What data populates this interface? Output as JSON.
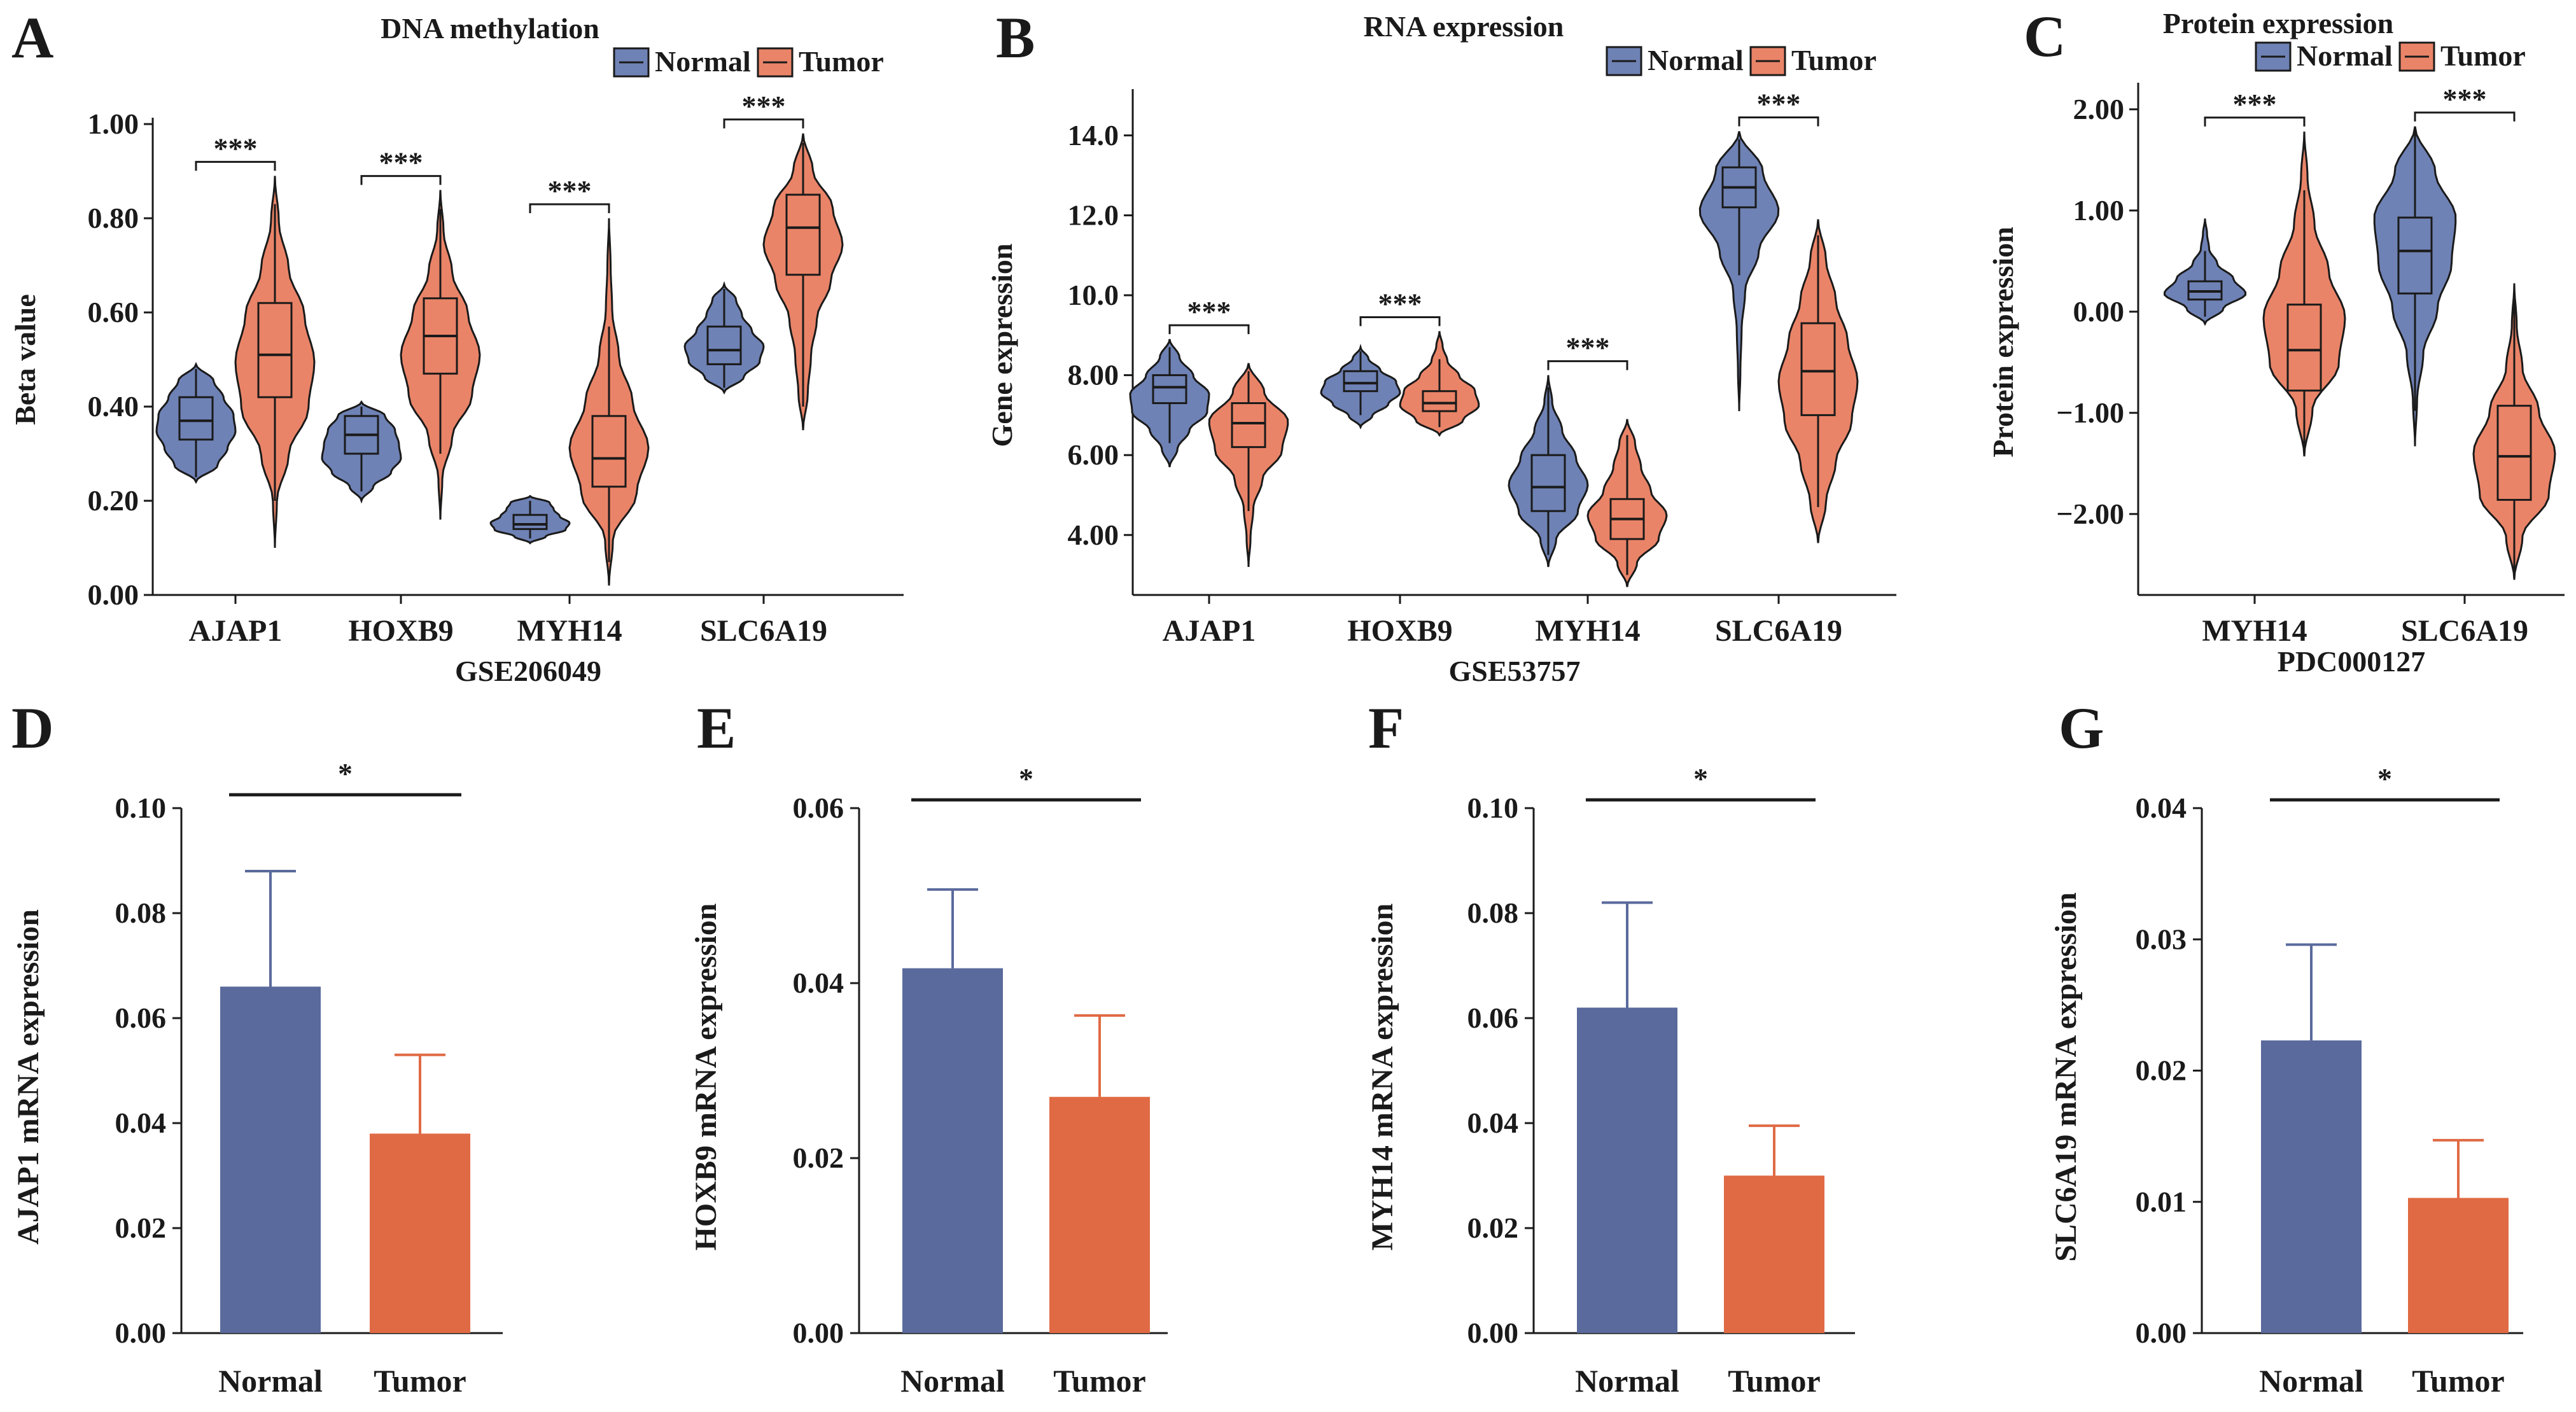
{
  "colors": {
    "normal": "#5a6a9c",
    "tumor": "#e06a44",
    "normal_violin": "#6f82b5",
    "tumor_violin": "#ea8468",
    "axis": "#1a1a1a"
  },
  "chart_data": [
    {
      "id": "A",
      "type": "violin",
      "letter": "A",
      "title": "DNA methylation",
      "xlabel": "GSE206049",
      "ylabel": "Beta value",
      "ylim": [
        0,
        1.0
      ],
      "yticks": [
        0.0,
        0.2,
        0.4,
        0.6,
        0.8,
        1.0
      ],
      "ytick_labels": [
        "0.00",
        "0.20",
        "0.40",
        "0.60",
        "0.80",
        "1.00"
      ],
      "legend": [
        "Normal",
        "Tumor"
      ],
      "categories": [
        "AJAP1",
        "HOXB9",
        "MYH14",
        "SLC6A19"
      ],
      "series": [
        {
          "name": "Normal",
          "groups": [
            {
              "min": 0.24,
              "max": 0.49,
              "q1": 0.33,
              "median": 0.37,
              "q3": 0.42,
              "wlo": 0.25,
              "whi": 0.48,
              "shape": [
                0.55,
                0.8,
                1.0,
                0.95,
                0.7,
                0.45
              ]
            },
            {
              "min": 0.2,
              "max": 0.41,
              "q1": 0.3,
              "median": 0.34,
              "q3": 0.38,
              "wlo": 0.22,
              "whi": 0.4,
              "shape": [
                0.3,
                0.75,
                1.0,
                0.95,
                0.85,
                0.6
              ]
            },
            {
              "min": 0.11,
              "max": 0.21,
              "q1": 0.14,
              "median": 0.15,
              "q3": 0.17,
              "wlo": 0.12,
              "whi": 0.2,
              "shape": [
                0.4,
                0.9,
                1.0,
                0.75,
                0.6,
                0.5
              ]
            },
            {
              "min": 0.43,
              "max": 0.66,
              "q1": 0.49,
              "median": 0.52,
              "q3": 0.57,
              "wlo": 0.44,
              "whi": 0.65,
              "shape": [
                0.5,
                0.9,
                1.0,
                0.7,
                0.45,
                0.3
              ]
            }
          ]
        },
        {
          "name": "Tumor",
          "groups": [
            {
              "min": 0.1,
              "max": 0.89,
              "q1": 0.42,
              "median": 0.51,
              "q3": 0.62,
              "wlo": 0.2,
              "whi": 0.83,
              "shape": [
                0.05,
                0.35,
                0.85,
                1.0,
                0.75,
                0.35,
                0.1
              ]
            },
            {
              "min": 0.16,
              "max": 0.86,
              "q1": 0.47,
              "median": 0.55,
              "q3": 0.63,
              "wlo": 0.3,
              "whi": 0.82,
              "shape": [
                0.05,
                0.3,
                0.8,
                1.0,
                0.7,
                0.3,
                0.08
              ]
            },
            {
              "min": 0.02,
              "max": 0.8,
              "q1": 0.23,
              "median": 0.29,
              "q3": 0.38,
              "wlo": 0.07,
              "whi": 0.57,
              "shape": [
                0.1,
                0.7,
                1.0,
                0.6,
                0.25,
                0.08,
                0.04
              ]
            },
            {
              "min": 0.35,
              "max": 0.98,
              "q1": 0.68,
              "median": 0.78,
              "q3": 0.85,
              "wlo": 0.4,
              "whi": 0.96,
              "shape": [
                0.12,
                0.2,
                0.35,
                0.7,
                1.0,
                0.75,
                0.25
              ]
            }
          ]
        }
      ],
      "significance": [
        "***",
        "***",
        "***",
        "***"
      ]
    },
    {
      "id": "B",
      "type": "violin",
      "letter": "B",
      "title": "RNA expression",
      "xlabel": "GSE53757",
      "ylabel": "Gene expression",
      "ylim": [
        2.5,
        15.0
      ],
      "yticks": [
        4,
        6,
        8,
        10,
        12,
        14
      ],
      "ytick_labels": [
        "4.00",
        "6.00",
        "8.00",
        "10.0",
        "12.0",
        "14.0"
      ],
      "legend": [
        "Normal",
        "Tumor"
      ],
      "categories": [
        "AJAP1",
        "HOXB9",
        "MYH14",
        "SLC6A19"
      ],
      "series": [
        {
          "name": "Normal",
          "groups": [
            {
              "min": 5.7,
              "max": 8.9,
              "q1": 7.3,
              "median": 7.7,
              "q3": 8.0,
              "wlo": 6.3,
              "whi": 8.7,
              "shape": [
                0.2,
                0.5,
                0.95,
                1.0,
                0.6,
                0.25
              ]
            },
            {
              "min": 6.7,
              "max": 8.7,
              "q1": 7.6,
              "median": 7.8,
              "q3": 8.1,
              "wlo": 7.0,
              "whi": 8.6,
              "shape": [
                0.3,
                0.7,
                1.0,
                0.9,
                0.5,
                0.2
              ]
            },
            {
              "min": 3.2,
              "max": 8.0,
              "q1": 4.6,
              "median": 5.2,
              "q3": 6.0,
              "wlo": 3.5,
              "whi": 7.7,
              "shape": [
                0.2,
                0.75,
                1.0,
                0.7,
                0.35,
                0.1
              ]
            },
            {
              "min": 7.1,
              "max": 14.1,
              "q1": 12.2,
              "median": 12.7,
              "q3": 13.2,
              "wlo": 10.5,
              "whi": 13.9,
              "shape": [
                0.03,
                0.06,
                0.15,
                0.5,
                1.0,
                0.6
              ]
            }
          ]
        },
        {
          "name": "Tumor",
          "groups": [
            {
              "min": 3.2,
              "max": 8.3,
              "q1": 6.2,
              "median": 6.8,
              "q3": 7.3,
              "wlo": 4.6,
              "whi": 8.1,
              "shape": [
                0.05,
                0.12,
                0.35,
                0.85,
                1.0,
                0.4
              ]
            },
            {
              "min": 6.5,
              "max": 9.1,
              "q1": 7.1,
              "median": 7.3,
              "q3": 7.6,
              "wlo": 6.7,
              "whi": 8.4,
              "shape": [
                0.6,
                1.0,
                0.9,
                0.5,
                0.2,
                0.08
              ]
            },
            {
              "min": 2.7,
              "max": 6.9,
              "q1": 3.9,
              "median": 4.4,
              "q3": 4.9,
              "wlo": 3.0,
              "whi": 6.5,
              "shape": [
                0.25,
                0.8,
                1.0,
                0.6,
                0.35,
                0.2
              ]
            },
            {
              "min": 3.8,
              "max": 11.9,
              "q1": 7.0,
              "median": 8.1,
              "q3": 9.3,
              "wlo": 4.7,
              "whi": 11.5,
              "shape": [
                0.2,
                0.45,
                0.85,
                1.0,
                0.75,
                0.45,
                0.2
              ]
            }
          ]
        }
      ],
      "significance": [
        "***",
        "***",
        "***",
        "***"
      ]
    },
    {
      "id": "C",
      "type": "violin",
      "letter": "C",
      "title": "Protein expression",
      "xlabel": "PDC000127",
      "ylabel": "Protein expression",
      "ylim": [
        -2.8,
        2.2
      ],
      "yticks": [
        -2,
        -1,
        0,
        1,
        2
      ],
      "ytick_labels": [
        "−2.00",
        "−1.00",
        "0.00",
        "1.00",
        "2.00"
      ],
      "legend": [
        "Normal",
        "Tumor"
      ],
      "categories": [
        "MYH14",
        "SLC6A19"
      ],
      "series": [
        {
          "name": "Normal",
          "groups": [
            {
              "min": -0.12,
              "max": 0.92,
              "q1": 0.12,
              "median": 0.2,
              "q3": 0.3,
              "wlo": -0.05,
              "whi": 0.6,
              "shape": [
                0.45,
                1.0,
                0.7,
                0.3,
                0.1,
                0.05
              ]
            },
            {
              "min": -1.33,
              "max": 1.83,
              "q1": 0.18,
              "median": 0.6,
              "q3": 0.93,
              "wlo": -0.98,
              "whi": 1.8,
              "shape": [
                0.05,
                0.2,
                0.55,
                0.9,
                1.0,
                0.5
              ]
            }
          ]
        },
        {
          "name": "Tumor",
          "groups": [
            {
              "min": -1.43,
              "max": 1.78,
              "q1": -0.78,
              "median": -0.38,
              "q3": 0.07,
              "wlo": -1.4,
              "whi": 1.2,
              "shape": [
                0.2,
                0.85,
                1.0,
                0.6,
                0.25,
                0.08
              ]
            },
            {
              "min": -2.65,
              "max": 0.28,
              "q1": -1.86,
              "median": -1.43,
              "q3": -0.93,
              "wlo": -2.6,
              "whi": 0.25,
              "shape": [
                0.2,
                0.85,
                1.0,
                0.6,
                0.2,
                0.06
              ]
            }
          ]
        }
      ],
      "significance": [
        "***",
        "***"
      ]
    },
    {
      "id": "D",
      "type": "bar",
      "letter": "D",
      "ylabel": "AJAP1 mRNA expression",
      "ylim": [
        0,
        0.1
      ],
      "yticks": [
        0,
        0.02,
        0.04,
        0.06,
        0.08,
        0.1
      ],
      "ytick_labels": [
        "0.00",
        "0.02",
        "0.04",
        "0.06",
        "0.08",
        "0.10"
      ],
      "categories": [
        "Normal",
        "Tumor"
      ],
      "values": [
        0.066,
        0.038
      ],
      "errors": [
        0.022,
        0.015
      ],
      "significance": "*"
    },
    {
      "id": "E",
      "type": "bar",
      "letter": "E",
      "ylabel": "HOXB9 mRNA expression",
      "ylim": [
        0,
        0.06
      ],
      "yticks": [
        0,
        0.02,
        0.04,
        0.06
      ],
      "ytick_labels": [
        "0.00",
        "0.02",
        "0.04",
        "0.06"
      ],
      "categories": [
        "Normal",
        "Tumor"
      ],
      "values": [
        0.0417,
        0.027
      ],
      "errors": [
        0.009,
        0.0093
      ],
      "significance": "*"
    },
    {
      "id": "F",
      "type": "bar",
      "letter": "F",
      "ylabel": "MYH14 mRNA expression",
      "ylim": [
        0,
        0.1
      ],
      "yticks": [
        0,
        0.02,
        0.04,
        0.06,
        0.08,
        0.1
      ],
      "ytick_labels": [
        "0.00",
        "0.02",
        "0.04",
        "0.06",
        "0.08",
        "0.10"
      ],
      "categories": [
        "Normal",
        "Tumor"
      ],
      "values": [
        0.062,
        0.03
      ],
      "errors": [
        0.02,
        0.0095
      ],
      "significance": "*"
    },
    {
      "id": "G",
      "type": "bar",
      "letter": "G",
      "ylabel": "SLC6A19 mRNA expression",
      "ylim": [
        0,
        0.04
      ],
      "yticks": [
        0,
        0.01,
        0.02,
        0.03,
        0.04
      ],
      "ytick_labels": [
        "0.00",
        "0.01",
        "0.02",
        "0.03",
        "0.04"
      ],
      "categories": [
        "Normal",
        "Tumor"
      ],
      "values": [
        0.0223,
        0.0103
      ],
      "errors": [
        0.0073,
        0.0044
      ],
      "significance": "*"
    }
  ]
}
